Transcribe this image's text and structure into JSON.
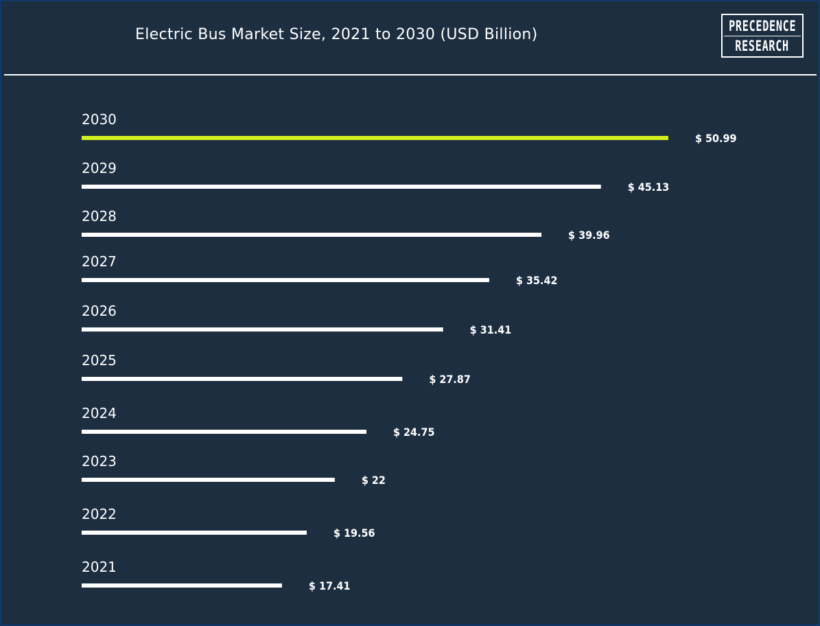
{
  "logo": {
    "line1": "PRECEDENCE",
    "line2": "RESEARCH"
  },
  "colors": {
    "background": "#1c2e40",
    "bar": "#ffffff",
    "highlight_bar": "#d4f01f",
    "text": "#ffffff"
  },
  "chart_data": {
    "type": "bar",
    "orientation": "horizontal",
    "title": "Electric Bus Market Size, 2021 to 2030 (USD Billion)",
    "categories": [
      "2030",
      "2029",
      "2028",
      "2027",
      "2026",
      "2025",
      "2024",
      "2023",
      "2022",
      "2021"
    ],
    "values": [
      50.99,
      45.13,
      39.96,
      35.42,
      31.41,
      27.87,
      24.75,
      22,
      19.56,
      17.41
    ],
    "value_labels": [
      "$ 50.99",
      "$ 45.13",
      "$ 39.96",
      "$ 35.42",
      "$ 31.41",
      "$ 27.87",
      "$ 24.75",
      "$ 22",
      "$ 19.56",
      "$ 17.41"
    ],
    "highlight_category": "2030",
    "grid": false,
    "legend": "none"
  }
}
